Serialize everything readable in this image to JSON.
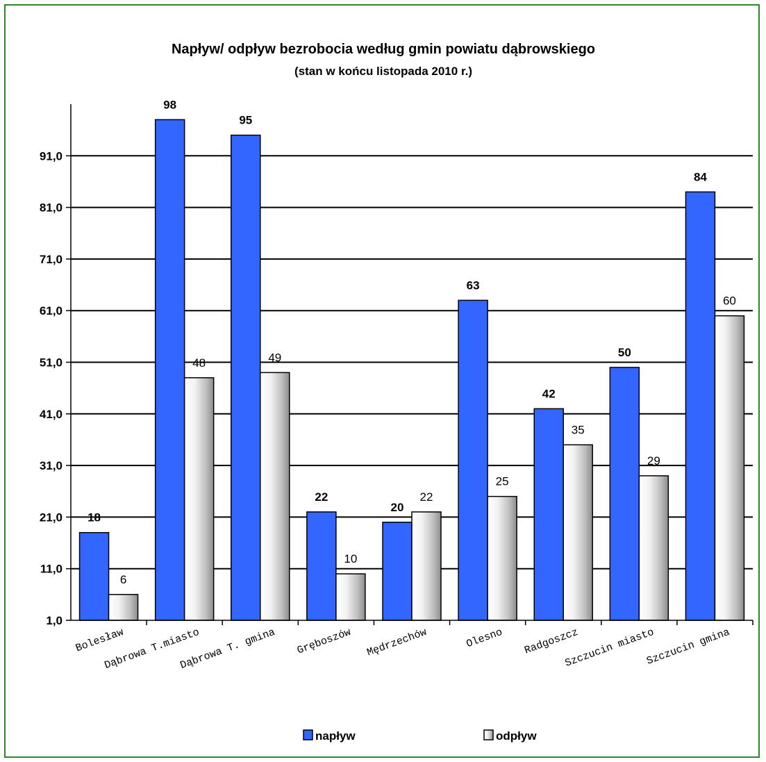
{
  "chart_data": {
    "type": "bar",
    "title": "Napływ/ odpływ bezrobocia według gmin powiatu dąbrowskiego",
    "subtitle": "(stan w końcu listopada 2010 r.)",
    "categories": [
      "Bolesław",
      "Dąbrowa T.miasto",
      "Dąbrowa T. gmina",
      "Gręboszów",
      "Mędrzechów",
      "Olesno",
      "Radgoszcz",
      "Szczucin miasto",
      "Szczucin gmina"
    ],
    "series": [
      {
        "name": "napływ",
        "values": [
          18,
          98,
          95,
          22,
          20,
          63,
          42,
          50,
          84
        ],
        "color": "#3366ff"
      },
      {
        "name": "odpływ",
        "values": [
          6,
          48,
          49,
          10,
          22,
          25,
          35,
          29,
          60
        ],
        "color": "#e0e0e0"
      }
    ],
    "yticks": [
      "1,0",
      "11,0",
      "21,0",
      "31,0",
      "41,0",
      "51,0",
      "61,0",
      "71,0",
      "81,0",
      "91,0"
    ],
    "ylim": [
      1,
      101
    ],
    "grid": true,
    "legend_position": "bottom"
  }
}
